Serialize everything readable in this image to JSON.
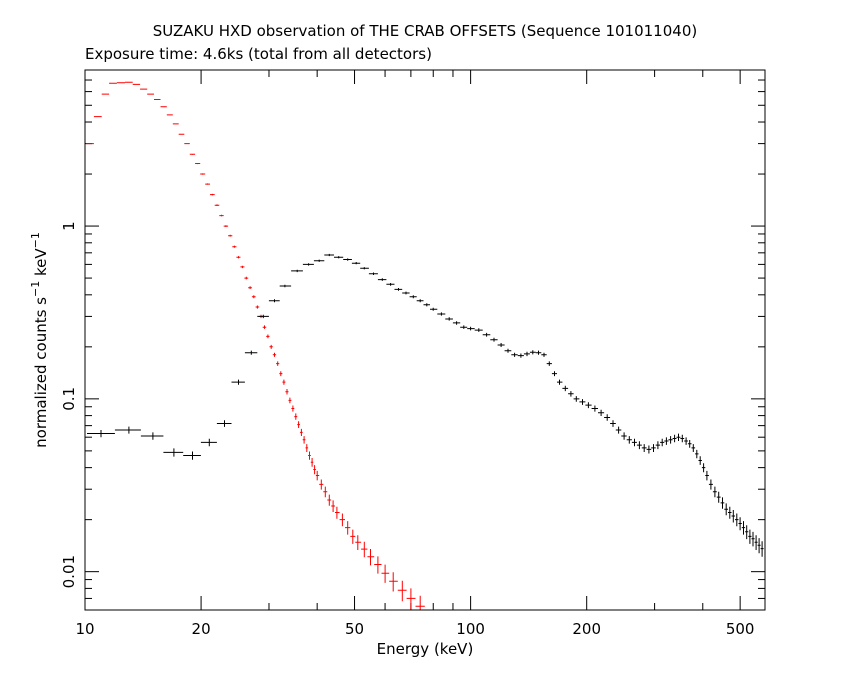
{
  "chart_data": {
    "type": "scatter",
    "title": "SUZAKU HXD observation of THE CRAB OFFSETS (Sequence 101011040)",
    "subtitle": "Exposure time: 4.6ks (total from all detectors)",
    "xlabel": "Energy (keV)",
    "ylabel_main": "normalized counts s",
    "ylabel_sup1": "−1",
    "ylabel_mid": " keV",
    "ylabel_sup2": "−1",
    "xscale": "log",
    "yscale": "log",
    "xlim": [
      10,
      580
    ],
    "ylim": [
      0.006,
      8
    ],
    "x_tick_labels": [
      {
        "value": 10,
        "label": "10"
      },
      {
        "value": 20,
        "label": "20"
      },
      {
        "value": 50,
        "label": "50"
      },
      {
        "value": 100,
        "label": "100"
      },
      {
        "value": 200,
        "label": "200"
      },
      {
        "value": 500,
        "label": "500"
      }
    ],
    "y_tick_labels": [
      {
        "value": 0.01,
        "label": "0.01"
      },
      {
        "value": 0.1,
        "label": "0.1"
      },
      {
        "value": 1,
        "label": "1"
      }
    ],
    "series": [
      {
        "color": "#ff0000",
        "points": [
          [
            10.3,
            3.0
          ],
          [
            10.8,
            4.3
          ],
          [
            11.3,
            5.8
          ],
          [
            11.8,
            6.7
          ],
          [
            12.4,
            6.75
          ],
          [
            13.0,
            6.8
          ],
          [
            13.6,
            6.6
          ],
          [
            14.2,
            6.2
          ],
          [
            14.8,
            5.8
          ],
          [
            15.4,
            5.4
          ],
          [
            16.0,
            4.9
          ],
          [
            16.6,
            4.4
          ],
          [
            17.2,
            3.9
          ],
          [
            17.8,
            3.4
          ],
          [
            18.4,
            3.0
          ],
          [
            19.0,
            2.6
          ],
          [
            19.6,
            2.3
          ],
          [
            20.2,
            2.0
          ],
          [
            20.8,
            1.75
          ],
          [
            21.4,
            1.52
          ],
          [
            22.0,
            1.32
          ],
          [
            22.6,
            1.15
          ],
          [
            23.2,
            1.0
          ],
          [
            23.8,
            0.88
          ],
          [
            24.4,
            0.76
          ],
          [
            25.0,
            0.66
          ],
          [
            25.6,
            0.58
          ],
          [
            26.2,
            0.5
          ],
          [
            26.8,
            0.44
          ],
          [
            27.4,
            0.39
          ],
          [
            28.0,
            0.34
          ],
          [
            28.6,
            0.3
          ],
          [
            29.2,
            0.26
          ],
          [
            29.8,
            0.23
          ],
          [
            30.4,
            0.2
          ],
          [
            31.0,
            0.18
          ],
          [
            31.6,
            0.16
          ],
          [
            32.2,
            0.14
          ],
          [
            32.8,
            0.125
          ],
          [
            33.4,
            0.11
          ],
          [
            34.0,
            0.098
          ],
          [
            34.6,
            0.088
          ],
          [
            35.2,
            0.079
          ],
          [
            35.8,
            0.071
          ],
          [
            36.4,
            0.064
          ],
          [
            37.0,
            0.058
          ],
          [
            37.6,
            0.052
          ],
          [
            38.2,
            0.047
          ],
          [
            38.8,
            0.043
          ],
          [
            39.4,
            0.039
          ],
          [
            40.0,
            0.036
          ],
          [
            41.0,
            0.032
          ],
          [
            42.0,
            0.029
          ],
          [
            43.0,
            0.026
          ],
          [
            44.0,
            0.024
          ],
          [
            45.0,
            0.022
          ],
          [
            46.5,
            0.02
          ],
          [
            48.0,
            0.018
          ],
          [
            49.5,
            0.016
          ],
          [
            51.0,
            0.0148
          ],
          [
            53.0,
            0.0135
          ],
          [
            55.0,
            0.0122
          ],
          [
            57.5,
            0.011
          ],
          [
            60.0,
            0.0098
          ],
          [
            63.0,
            0.0088
          ],
          [
            66.5,
            0.0078
          ],
          [
            70.0,
            0.007
          ],
          [
            74.0,
            0.0063
          ]
        ]
      },
      {
        "color": "#000000",
        "points": [
          [
            11.0,
            0.063
          ],
          [
            13.0,
            0.066
          ],
          [
            15.0,
            0.061
          ],
          [
            17.0,
            0.049
          ],
          [
            19.0,
            0.047
          ],
          [
            21.0,
            0.056
          ],
          [
            23.0,
            0.072
          ],
          [
            25.0,
            0.125
          ],
          [
            27.0,
            0.185
          ],
          [
            29.0,
            0.3
          ],
          [
            31.0,
            0.37
          ],
          [
            33.0,
            0.45
          ],
          [
            35.5,
            0.55
          ],
          [
            38.0,
            0.6
          ],
          [
            40.5,
            0.63
          ],
          [
            43.0,
            0.68
          ],
          [
            45.5,
            0.66
          ],
          [
            48.0,
            0.64
          ],
          [
            50.5,
            0.61
          ],
          [
            53.0,
            0.57
          ],
          [
            56.0,
            0.53
          ],
          [
            59.0,
            0.49
          ],
          [
            62.0,
            0.46
          ],
          [
            65.0,
            0.43
          ],
          [
            68.0,
            0.41
          ],
          [
            71.0,
            0.39
          ],
          [
            74.0,
            0.37
          ],
          [
            77.0,
            0.35
          ],
          [
            80.0,
            0.33
          ],
          [
            84.0,
            0.31
          ],
          [
            88.0,
            0.29
          ],
          [
            92.0,
            0.275
          ],
          [
            96.0,
            0.26
          ],
          [
            100.0,
            0.255
          ],
          [
            105.0,
            0.25
          ],
          [
            110.0,
            0.235
          ],
          [
            115.0,
            0.22
          ],
          [
            120.0,
            0.205
          ],
          [
            125.0,
            0.19
          ],
          [
            130.0,
            0.18
          ],
          [
            135.0,
            0.178
          ],
          [
            140.0,
            0.182
          ],
          [
            145.0,
            0.186
          ],
          [
            150.0,
            0.185
          ],
          [
            155.0,
            0.18
          ],
          [
            160.0,
            0.16
          ],
          [
            165.0,
            0.14
          ],
          [
            170.0,
            0.125
          ],
          [
            176.0,
            0.115
          ],
          [
            182.0,
            0.107
          ],
          [
            188.0,
            0.1
          ],
          [
            195.0,
            0.096
          ],
          [
            202.0,
            0.092
          ],
          [
            210.0,
            0.088
          ],
          [
            218.0,
            0.083
          ],
          [
            226.0,
            0.078
          ],
          [
            234.0,
            0.072
          ],
          [
            242.0,
            0.066
          ],
          [
            250.0,
            0.061
          ],
          [
            258.0,
            0.058
          ],
          [
            266.0,
            0.056
          ],
          [
            274.0,
            0.054
          ],
          [
            282.0,
            0.052
          ],
          [
            290.0,
            0.051
          ],
          [
            298.0,
            0.052
          ],
          [
            306.0,
            0.054
          ],
          [
            314.0,
            0.056
          ],
          [
            322.0,
            0.057
          ],
          [
            330.0,
            0.058
          ],
          [
            338.0,
            0.059
          ],
          [
            346.0,
            0.06
          ],
          [
            354.0,
            0.059
          ],
          [
            362.0,
            0.057
          ],
          [
            370.0,
            0.055
          ],
          [
            378.0,
            0.052
          ],
          [
            386.0,
            0.048
          ],
          [
            394.0,
            0.044
          ],
          [
            402.0,
            0.04
          ],
          [
            410.0,
            0.036
          ],
          [
            420.0,
            0.032
          ],
          [
            430.0,
            0.029
          ],
          [
            440.0,
            0.027
          ],
          [
            450.0,
            0.025
          ],
          [
            460.0,
            0.023
          ],
          [
            470.0,
            0.022
          ],
          [
            480.0,
            0.021
          ],
          [
            490.0,
            0.02
          ],
          [
            500.0,
            0.019
          ],
          [
            510.0,
            0.018
          ],
          [
            520.0,
            0.017
          ],
          [
            530.0,
            0.016
          ],
          [
            540.0,
            0.0155
          ],
          [
            550.0,
            0.0148
          ],
          [
            560.0,
            0.0142
          ],
          [
            570.0,
            0.0136
          ]
        ]
      }
    ]
  }
}
